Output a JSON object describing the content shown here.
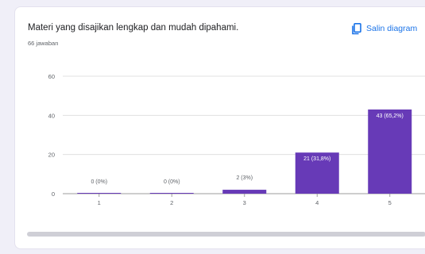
{
  "card": {
    "title": "Materi yang disajikan lengkap dan mudah dipahami.",
    "response_count": "66 jawaban",
    "copy_label": "Salin diagram"
  },
  "colors": {
    "bar": "#673ab7",
    "accent": "#1a73e8",
    "grid": "#e0e0e0",
    "axis": "#9e9e9e"
  },
  "chart_data": {
    "type": "bar",
    "title": "Materi yang disajikan lengkap dan mudah dipahami.",
    "xlabel": "",
    "ylabel": "",
    "categories": [
      "1",
      "2",
      "3",
      "4",
      "5"
    ],
    "values": [
      0,
      0,
      2,
      21,
      43
    ],
    "data_labels": [
      "0 (0%)",
      "0 (0%)",
      "2 (3%)",
      "21 (31,8%)",
      "43 (65,2%)"
    ],
    "ylim": [
      0,
      60
    ],
    "yticks": [
      0,
      20,
      40,
      60
    ],
    "grid": true
  }
}
